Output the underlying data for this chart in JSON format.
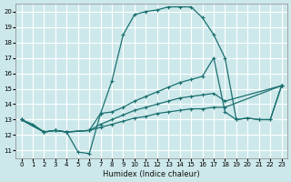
{
  "xlabel": "Humidex (Indice chaleur)",
  "bg_color": "#cde8ea",
  "grid_color": "#ffffff",
  "line_color": "#1a7070",
  "xlim": [
    -0.5,
    23.5
  ],
  "ylim": [
    10.5,
    20.5
  ],
  "xticks": [
    0,
    1,
    2,
    3,
    4,
    5,
    6,
    7,
    8,
    9,
    10,
    11,
    12,
    13,
    14,
    15,
    16,
    17,
    18,
    19,
    20,
    21,
    22,
    23
  ],
  "yticks": [
    11,
    12,
    13,
    14,
    15,
    16,
    17,
    18,
    19,
    20
  ],
  "line1_x": [
    0,
    1,
    2,
    3,
    4,
    5,
    6,
    7,
    8,
    9,
    10,
    11,
    12,
    13,
    14,
    15,
    16,
    17,
    18,
    19,
    20,
    21,
    22,
    23
  ],
  "line1_y": [
    13.0,
    12.7,
    12.2,
    12.3,
    12.2,
    10.9,
    10.8,
    13.4,
    15.5,
    18.5,
    19.8,
    20.0,
    20.1,
    20.3,
    20.3,
    20.3,
    19.6,
    18.5,
    17.0,
    13.0,
    13.1,
    13.0,
    13.0,
    15.2
  ],
  "line2_x": [
    0,
    2,
    3,
    4,
    6,
    7,
    8,
    9,
    10,
    11,
    12,
    13,
    14,
    15,
    16,
    17,
    18,
    19,
    20,
    21,
    22,
    23
  ],
  "line2_y": [
    13.0,
    12.2,
    12.3,
    12.2,
    12.3,
    13.4,
    13.5,
    13.8,
    14.2,
    14.5,
    14.8,
    15.1,
    15.4,
    15.6,
    15.8,
    17.0,
    13.5,
    13.0,
    13.1,
    13.0,
    13.0,
    15.2
  ],
  "line3_x": [
    0,
    2,
    3,
    4,
    6,
    7,
    8,
    9,
    10,
    11,
    12,
    13,
    14,
    15,
    16,
    17,
    18,
    23
  ],
  "line3_y": [
    13.0,
    12.2,
    12.3,
    12.2,
    12.3,
    12.7,
    13.0,
    13.3,
    13.6,
    13.8,
    14.0,
    14.2,
    14.4,
    14.5,
    14.6,
    14.7,
    14.2,
    15.2
  ],
  "line4_x": [
    0,
    2,
    3,
    4,
    6,
    7,
    8,
    9,
    10,
    11,
    12,
    13,
    14,
    15,
    16,
    17,
    18,
    23
  ],
  "line4_y": [
    13.0,
    12.2,
    12.3,
    12.2,
    12.3,
    12.5,
    12.7,
    12.9,
    13.1,
    13.2,
    13.4,
    13.5,
    13.6,
    13.7,
    13.7,
    13.8,
    13.8,
    15.2
  ]
}
